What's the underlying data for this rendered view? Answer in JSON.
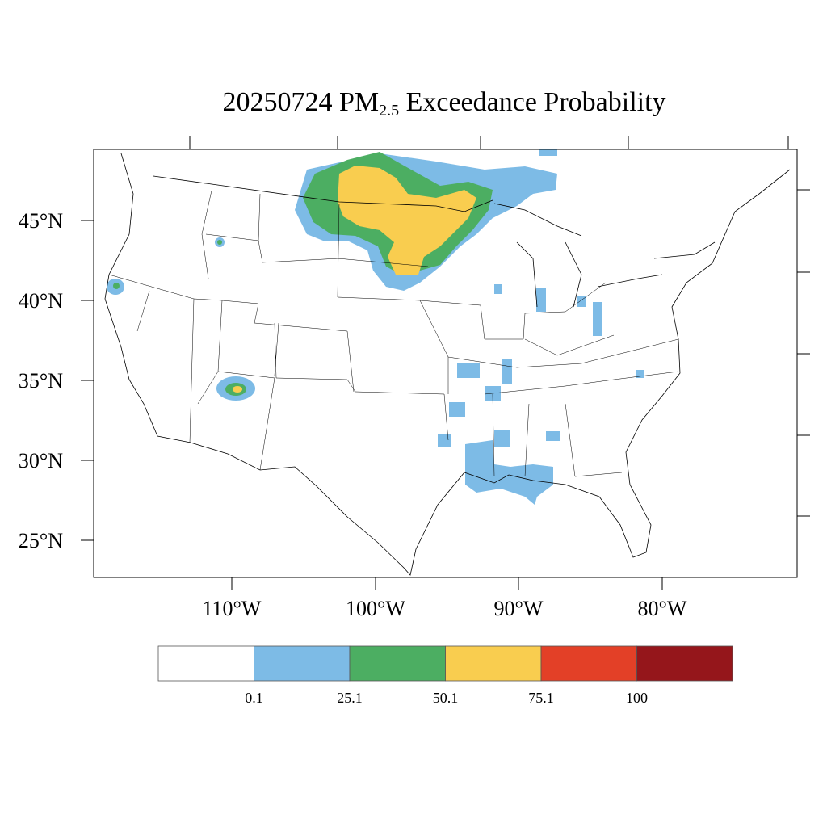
{
  "title": {
    "prefix": "20250724 PM",
    "subscript": "2.5",
    "suffix": " Exceedance Probability"
  },
  "map": {
    "lat_labels": [
      "45°N",
      "40°N",
      "35°N",
      "30°N",
      "25°N"
    ],
    "lon_labels": [
      "110°W",
      "100°W",
      "90°W",
      "80°W"
    ]
  },
  "legend": {
    "colors": [
      "#ffffff",
      "#7dbbe6",
      "#4cae62",
      "#f9cd4f",
      "#e34027",
      "#95161b"
    ],
    "tick_labels": [
      "0.1",
      "25.1",
      "50.1",
      "75.1",
      "100"
    ]
  },
  "colors": {
    "prob_0_1": "#7dbbe6",
    "prob_25_1": "#4cae62",
    "prob_50_1": "#f9cd4f",
    "prob_75_1": "#e34027",
    "prob_100": "#95161b",
    "lines": "#000000"
  }
}
